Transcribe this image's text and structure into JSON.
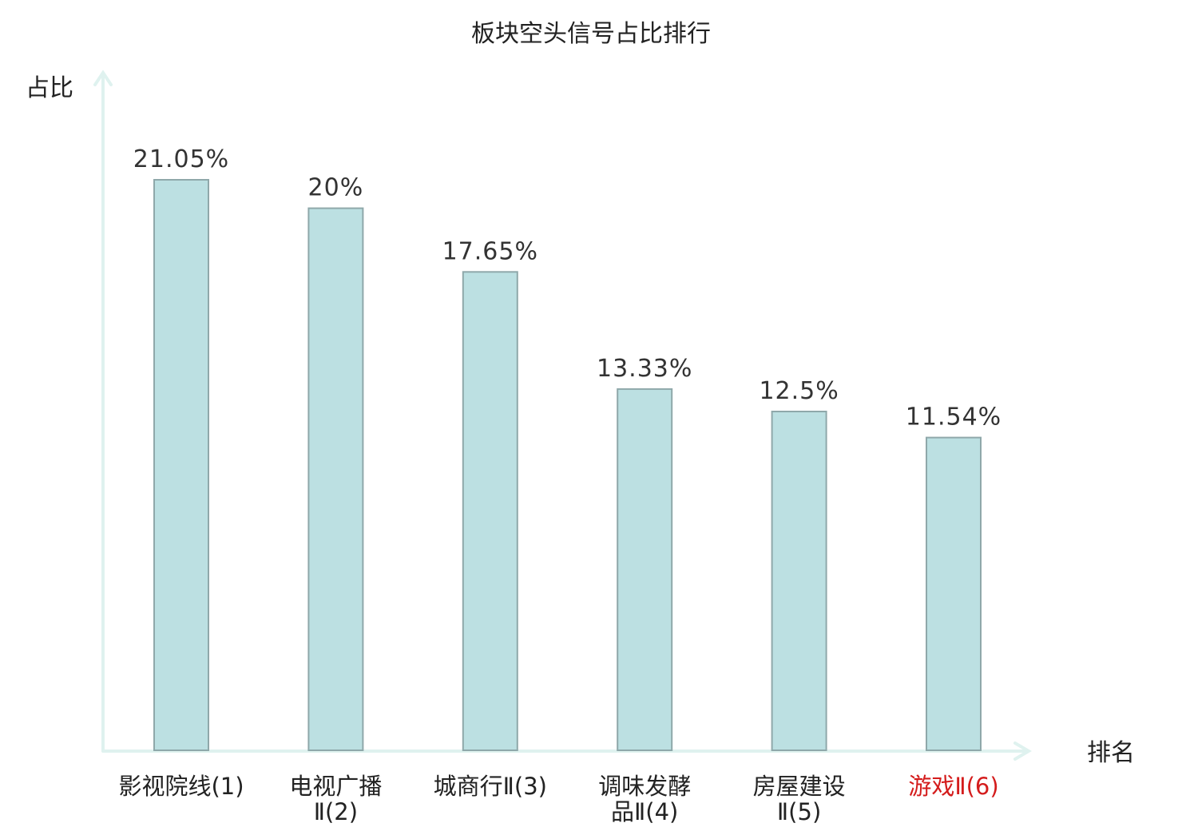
{
  "chart_data": {
    "type": "bar",
    "title": "板块空头信号占比排行",
    "ylabel": "占比",
    "xlabel": "排名",
    "categories": [
      [
        "影视院线(1)"
      ],
      [
        "电视广播",
        "Ⅱ(2)"
      ],
      [
        "城商行Ⅱ(3)"
      ],
      [
        "调味发酵",
        "品Ⅱ(4)"
      ],
      [
        "房屋建设",
        "Ⅱ(5)"
      ],
      [
        "游戏Ⅱ(6)"
      ]
    ],
    "values": [
      21.05,
      20,
      17.65,
      13.33,
      12.5,
      11.54
    ],
    "value_labels": [
      "21.05%",
      "20%",
      "17.65%",
      "13.33%",
      "12.5%",
      "11.54%"
    ],
    "highlight_index": 5,
    "ylim": [
      0,
      25
    ],
    "grid": false,
    "colors": {
      "bar_fill": "#bce0e2",
      "bar_stroke": "#8fa8aa",
      "axis": "#dff2ef",
      "highlight_text": "#d41c1c"
    }
  }
}
